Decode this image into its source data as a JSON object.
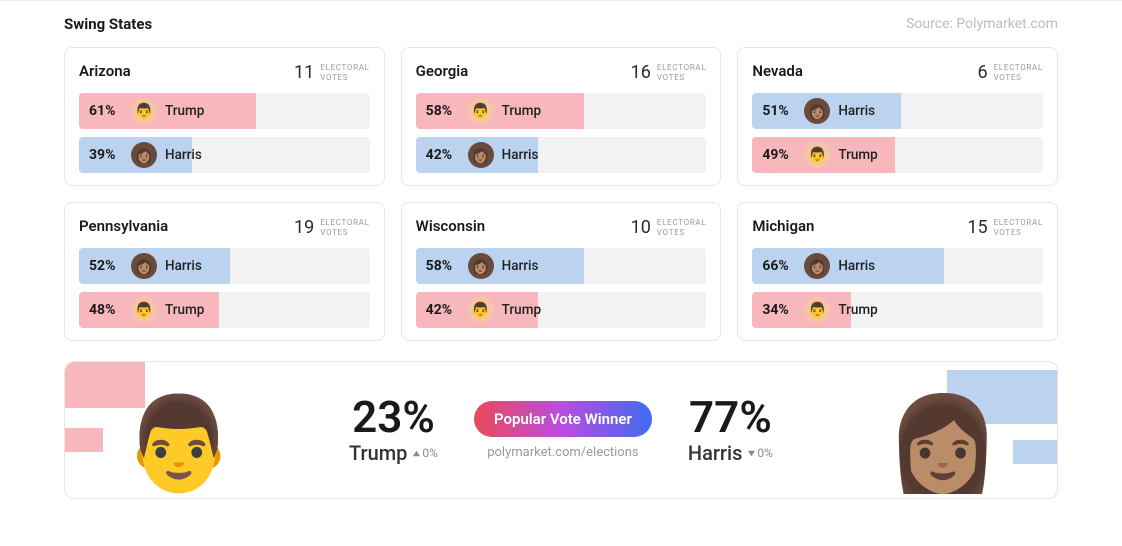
{
  "header": {
    "title": "Swing States",
    "source": "Source: Polymarket.com"
  },
  "colors": {
    "trump_fill": "#f7b7bd",
    "harris_fill": "#bcd3f0",
    "bar_bg": "#f2f2f2",
    "trump_avatar_bg": "#f4c7a3",
    "harris_avatar_bg": "#6a4a3a"
  },
  "ev_label_line1": "ELECTORAL",
  "ev_label_line2": "VOTES",
  "candidates": {
    "trump": {
      "name": "Trump",
      "emoji": "👨"
    },
    "harris": {
      "name": "Harris",
      "emoji": "👩🏽"
    }
  },
  "states": [
    {
      "name": "Arizona",
      "ev": 11,
      "rows": [
        {
          "cand": "trump",
          "pct": 61
        },
        {
          "cand": "harris",
          "pct": 39
        }
      ]
    },
    {
      "name": "Georgia",
      "ev": 16,
      "rows": [
        {
          "cand": "trump",
          "pct": 58
        },
        {
          "cand": "harris",
          "pct": 42
        }
      ]
    },
    {
      "name": "Nevada",
      "ev": 6,
      "rows": [
        {
          "cand": "harris",
          "pct": 51
        },
        {
          "cand": "trump",
          "pct": 49
        }
      ]
    },
    {
      "name": "Pennsylvania",
      "ev": 19,
      "rows": [
        {
          "cand": "harris",
          "pct": 52
        },
        {
          "cand": "trump",
          "pct": 48
        }
      ]
    },
    {
      "name": "Wisconsin",
      "ev": 10,
      "rows": [
        {
          "cand": "harris",
          "pct": 58
        },
        {
          "cand": "trump",
          "pct": 42
        }
      ]
    },
    {
      "name": "Michigan",
      "ev": 15,
      "rows": [
        {
          "cand": "harris",
          "pct": 66
        },
        {
          "cand": "trump",
          "pct": 34
        }
      ]
    }
  ],
  "banner": {
    "pill_label": "Popular Vote Winner",
    "sub_link": "polymarket.com/elections",
    "left": {
      "cand": "trump",
      "pct": 23,
      "delta": "0%",
      "dir": "up",
      "emoji": "👨"
    },
    "right": {
      "cand": "harris",
      "pct": 77,
      "delta": "0%",
      "dir": "down",
      "emoji": "👩🏽"
    }
  }
}
